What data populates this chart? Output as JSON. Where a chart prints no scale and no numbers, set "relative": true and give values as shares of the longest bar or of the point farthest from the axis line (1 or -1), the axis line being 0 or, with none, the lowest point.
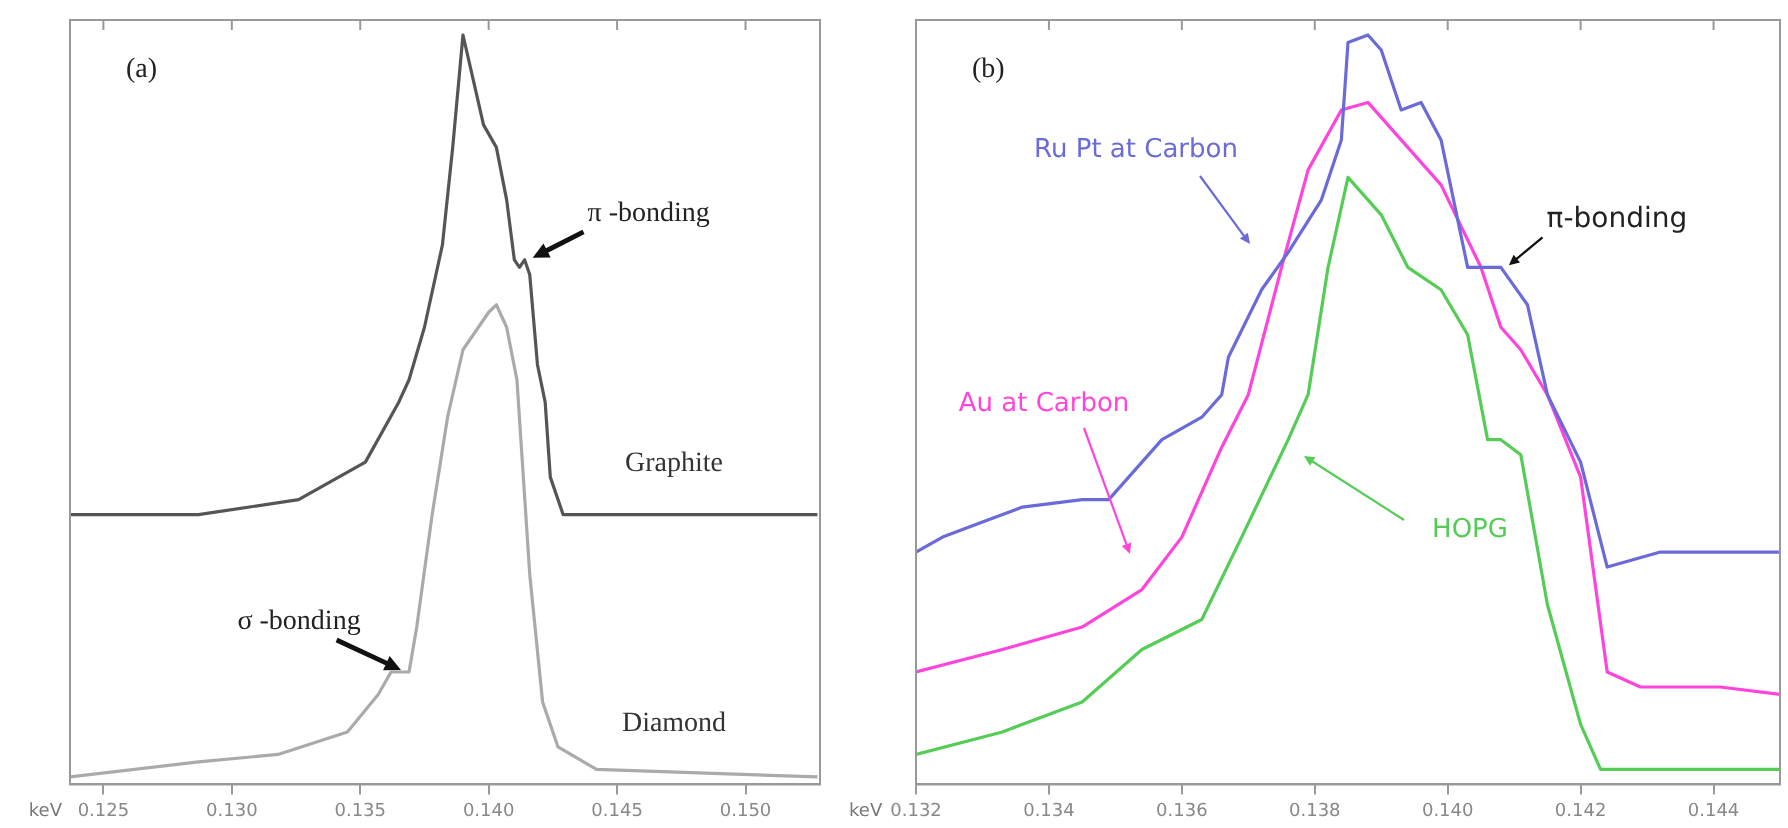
{
  "chart_data": [
    {
      "type": "line",
      "relative": true,
      "xlabel": "keV",
      "xlim": [
        0.1237,
        0.1529
      ],
      "xticks": [
        0.125,
        {
          "value": 0.13,
          "label": "0.130"
        },
        0.135,
        {
          "value": 0.14,
          "label": "0.140"
        },
        0.145,
        {
          "value": 0.15,
          "label": "0.150"
        }
      ],
      "grid": false,
      "legend": false,
      "marker": "none",
      "line_style": "solid",
      "annotations": [
        "(a)",
        {
          "text": "π -bonding",
          "x": 0.1414,
          "y": 0.7
        },
        {
          "text": "σ -bonding",
          "x": 0.1369,
          "y": 0.15
        }
      ],
      "series": [
        {
          "name": "Graphite",
          "color": "#555555",
          "x": [
            0.1237,
            0.1287,
            0.1326,
            0.1352,
            0.1365,
            0.1369,
            0.1375,
            0.1382,
            0.1386,
            0.139,
            0.1394,
            0.1398,
            0.1403,
            0.1407,
            0.141,
            0.1412,
            0.1414,
            0.1416,
            0.1419,
            0.1422,
            0.1424,
            0.1429,
            0.1442,
            0.1481,
            0.1528
          ],
          "values": [
            0.36,
            0.36,
            0.38,
            0.43,
            0.51,
            0.54,
            0.61,
            0.72,
            0.85,
            1,
            0.94,
            0.88,
            0.85,
            0.78,
            0.7,
            0.69,
            0.7,
            0.68,
            0.56,
            0.51,
            0.41,
            0.36,
            0.36,
            0.36,
            0.36
          ]
        },
        {
          "name": "Diamond",
          "color": "#aaaaaa",
          "x": [
            0.1237,
            0.1287,
            0.1318,
            0.1345,
            0.1357,
            0.1362,
            0.1369,
            0.1372,
            0.1378,
            0.1384,
            0.139,
            0.1396,
            0.14,
            0.1403,
            0.1407,
            0.1411,
            0.1416,
            0.1421,
            0.1427,
            0.1442,
            0.1528
          ],
          "values": [
            0.01,
            0.03,
            0.04,
            0.07,
            0.12,
            0.15,
            0.15,
            0.21,
            0.36,
            0.49,
            0.58,
            0.61,
            0.63,
            0.64,
            0.61,
            0.54,
            0.28,
            0.11,
            0.05,
            0.02,
            0.01
          ]
        }
      ]
    },
    {
      "type": "line",
      "relative": true,
      "xlabel": "keV",
      "xlim": [
        0.132,
        0.145
      ],
      "xticks": [
        0.132,
        0.134,
        0.136,
        0.138,
        {
          "value": 0.14,
          "label": "0.140"
        },
        0.142,
        0.144
      ],
      "grid": false,
      "legend": false,
      "marker": "none",
      "line_style": "solid",
      "annotations": [
        "(b)",
        {
          "text": "π-bonding",
          "x": 0.1408,
          "y": 0.69
        }
      ],
      "series": [
        {
          "name": "Ru Pt at Carbon",
          "color": "#6a6ad8",
          "x": [
            0.132,
            0.1324,
            0.133,
            0.1336,
            0.1345,
            0.1349,
            0.1352,
            0.1357,
            0.1363,
            0.1366,
            0.1367,
            0.1372,
            0.1376,
            0.1381,
            0.1384,
            0.1385,
            0.1388,
            0.139,
            0.1393,
            0.1396,
            0.1399,
            0.1403,
            0.1408,
            0.1412,
            0.1415,
            0.142,
            0.1424,
            0.1432,
            0.1441,
            0.145
          ],
          "values": [
            0.31,
            0.33,
            0.35,
            0.37,
            0.38,
            0.38,
            0.41,
            0.46,
            0.49,
            0.52,
            0.57,
            0.66,
            0.71,
            0.78,
            0.86,
            0.99,
            1,
            0.98,
            0.9,
            0.91,
            0.86,
            0.69,
            0.69,
            0.64,
            0.52,
            0.43,
            0.29,
            0.31,
            0.31,
            0.31
          ]
        },
        {
          "name": "Au at Carbon",
          "color": "#ff44dd",
          "x": [
            0.132,
            0.1333,
            0.1345,
            0.1354,
            0.136,
            0.1366,
            0.137,
            0.1375,
            0.1379,
            0.1384,
            0.1388,
            0.1393,
            0.1399,
            0.1405,
            0.1408,
            0.1411,
            0.1415,
            0.142,
            0.1424,
            0.1429,
            0.1441,
            0.145
          ],
          "values": [
            0.15,
            0.18,
            0.21,
            0.26,
            0.33,
            0.45,
            0.52,
            0.69,
            0.82,
            0.9,
            0.91,
            0.86,
            0.8,
            0.69,
            0.61,
            0.58,
            0.52,
            0.41,
            0.15,
            0.13,
            0.13,
            0.12
          ]
        },
        {
          "name": "HOPG",
          "color": "#55cc55",
          "x": [
            0.132,
            0.1333,
            0.1345,
            0.1354,
            0.1363,
            0.1369,
            0.1376,
            0.1379,
            0.1382,
            0.1385,
            0.139,
            0.1394,
            0.1399,
            0.1403,
            0.1406,
            0.1408,
            0.1411,
            0.1415,
            0.142,
            0.1423,
            0.1432,
            0.145
          ],
          "values": [
            0.04,
            0.07,
            0.11,
            0.18,
            0.22,
            0.33,
            0.46,
            0.52,
            0.69,
            0.81,
            0.76,
            0.69,
            0.66,
            0.6,
            0.46,
            0.46,
            0.44,
            0.24,
            0.08,
            0.02,
            0.02,
            0.02
          ]
        }
      ]
    }
  ]
}
